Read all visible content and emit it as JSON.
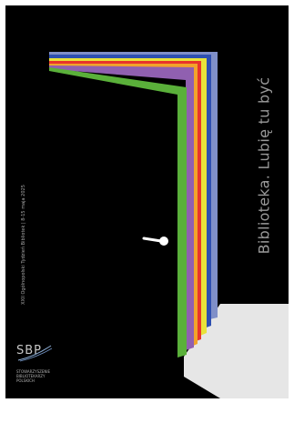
{
  "poster": {
    "slogan": "Biblioteka. Lubię tu być",
    "event_line": "XXII Ogólnopolski Tydzień Bibliotek | 8-15 maja 2025",
    "logo": {
      "abbreviation": "SBP",
      "name_lines": [
        "STOWARZYSZENIE",
        "BIBLIOTEKARZY",
        "POLSKICH"
      ]
    },
    "colors": {
      "background": "#000000",
      "rainbow": [
        "#7f8fc8",
        "#2d4fb0",
        "#e8e23a",
        "#e8342a",
        "#f2a32a",
        "#9060b0",
        "#5ab03a"
      ],
      "floor": "#e6e6e6",
      "door_handle": "#ffffff"
    }
  }
}
